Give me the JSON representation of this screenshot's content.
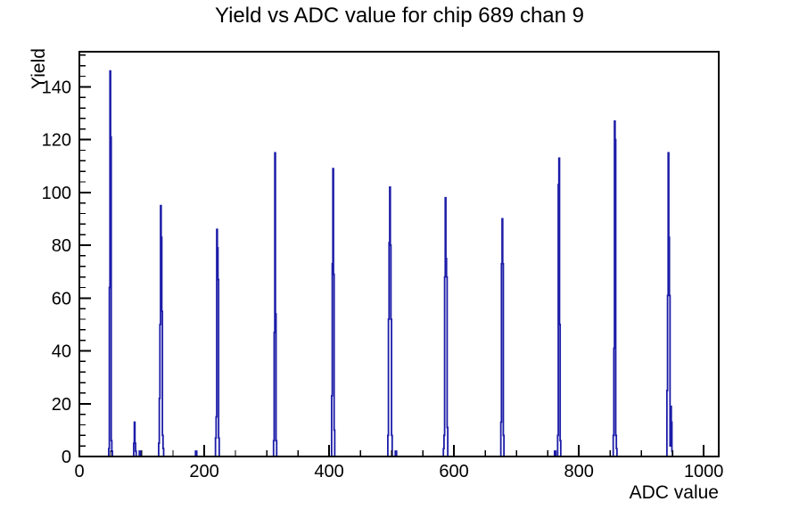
{
  "chart_data": {
    "type": "bar",
    "style": "root-step-histogram-outline",
    "title": "Yield vs ADC value for chip 689 chan 9",
    "xlabel": "ADC value",
    "ylabel": "Yield",
    "xlim": [
      0,
      1024
    ],
    "ylim": [
      0,
      153.3
    ],
    "x_major_ticks": [
      0,
      200,
      400,
      600,
      800,
      1000
    ],
    "x_minor_step": 50,
    "y_major_ticks": [
      0,
      20,
      40,
      60,
      80,
      100,
      120,
      140
    ],
    "y_minor_step": 4,
    "grid": false,
    "legend": "none",
    "colors": {
      "line": "#1c1ca8",
      "axis": "#000000",
      "background": "#ffffff"
    },
    "bins_note": "non-zero histogram bins as [ADC value, Yield]; bin width 1 ADC",
    "bins": [
      [
        47,
        3
      ],
      [
        48,
        64
      ],
      [
        49,
        146
      ],
      [
        50,
        121
      ],
      [
        51,
        6
      ],
      [
        52,
        2
      ],
      [
        87,
        5
      ],
      [
        88,
        13
      ],
      [
        89,
        5
      ],
      [
        90,
        2
      ],
      [
        96,
        2
      ],
      [
        97,
        2
      ],
      [
        127,
        5
      ],
      [
        128,
        22
      ],
      [
        129,
        50
      ],
      [
        130,
        95
      ],
      [
        131,
        83
      ],
      [
        132,
        55
      ],
      [
        133,
        8
      ],
      [
        134,
        3
      ],
      [
        186,
        2
      ],
      [
        187,
        2
      ],
      [
        218,
        7
      ],
      [
        219,
        15
      ],
      [
        220,
        86
      ],
      [
        221,
        79
      ],
      [
        222,
        67
      ],
      [
        223,
        7
      ],
      [
        311,
        6
      ],
      [
        312,
        47
      ],
      [
        313,
        115
      ],
      [
        314,
        54
      ],
      [
        315,
        6
      ],
      [
        404,
        23
      ],
      [
        405,
        73
      ],
      [
        406,
        109
      ],
      [
        407,
        69
      ],
      [
        408,
        10
      ],
      [
        494,
        8
      ],
      [
        495,
        52
      ],
      [
        496,
        81
      ],
      [
        497,
        102
      ],
      [
        498,
        80
      ],
      [
        499,
        52
      ],
      [
        500,
        8
      ],
      [
        506,
        2
      ],
      [
        507,
        2
      ],
      [
        583,
        3
      ],
      [
        584,
        8
      ],
      [
        585,
        68
      ],
      [
        586,
        98
      ],
      [
        587,
        75
      ],
      [
        588,
        68
      ],
      [
        589,
        11
      ],
      [
        675,
        13
      ],
      [
        676,
        73
      ],
      [
        677,
        90
      ],
      [
        678,
        73
      ],
      [
        679,
        8
      ],
      [
        761,
        2
      ],
      [
        762,
        2
      ],
      [
        766,
        8
      ],
      [
        767,
        103
      ],
      [
        768,
        113
      ],
      [
        769,
        50
      ],
      [
        770,
        6
      ],
      [
        855,
        8
      ],
      [
        856,
        41
      ],
      [
        857,
        127
      ],
      [
        858,
        120
      ],
      [
        859,
        8
      ],
      [
        860,
        3
      ],
      [
        941,
        25
      ],
      [
        942,
        61
      ],
      [
        943,
        115
      ],
      [
        944,
        83
      ],
      [
        945,
        61
      ],
      [
        946,
        4
      ],
      [
        947,
        19
      ],
      [
        948,
        13
      ],
      [
        949,
        2
      ]
    ],
    "peak_summary": [
      {
        "adc": 49,
        "yield": 146
      },
      {
        "adc": 88,
        "yield": 13
      },
      {
        "adc": 130,
        "yield": 95
      },
      {
        "adc": 220,
        "yield": 86
      },
      {
        "adc": 313,
        "yield": 115
      },
      {
        "adc": 406,
        "yield": 109
      },
      {
        "adc": 497,
        "yield": 102
      },
      {
        "adc": 586,
        "yield": 98
      },
      {
        "adc": 677,
        "yield": 90
      },
      {
        "adc": 768,
        "yield": 113
      },
      {
        "adc": 857,
        "yield": 127
      },
      {
        "adc": 943,
        "yield": 115
      }
    ]
  }
}
